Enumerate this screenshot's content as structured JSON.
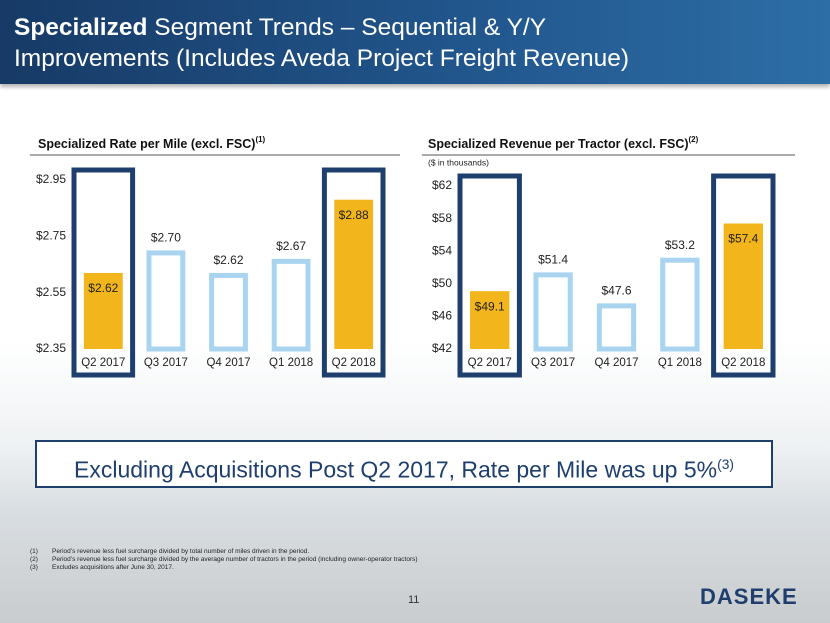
{
  "title_bold": "Specialized",
  "title_rest": "Segment Trends – Sequential & Y/Y Improvements (Includes Aveda Project Freight Revenue)",
  "chart_data": [
    {
      "type": "bar",
      "title": "Specialized Rate per Mile (excl. FSC)",
      "title_note": "(1)",
      "categories": [
        "Q2 2017",
        "Q3 2017",
        "Q4 2017",
        "Q1 2018",
        "Q2 2018"
      ],
      "values": [
        2.62,
        2.7,
        2.62,
        2.67,
        2.88
      ],
      "value_labels": [
        "$2.62",
        "$2.70",
        "$2.62",
        "$2.67",
        "$2.88"
      ],
      "colors": [
        "#f2b51c",
        "#a8d4ef",
        "#a8d4ef",
        "#a8d4ef",
        "#f2b51c"
      ],
      "filled": [
        true,
        false,
        false,
        false,
        true
      ],
      "highlight": [
        0,
        4
      ],
      "ylim": [
        2.35,
        2.95
      ],
      "yticks": [
        {
          "value": 2.35,
          "label": "$2.35"
        },
        {
          "value": 2.55,
          "label": "$2.55"
        },
        {
          "value": 2.75,
          "label": "$2.75"
        },
        {
          "value": 2.95,
          "label": "$2.95"
        }
      ],
      "grid": false
    },
    {
      "type": "bar",
      "title": "Specialized Revenue per Tractor (excl. FSC)",
      "title_note": "(2)",
      "subtitle": "($ in thousands)",
      "categories": [
        "Q2 2017",
        "Q3 2017",
        "Q4 2017",
        "Q1 2018",
        "Q2 2018"
      ],
      "values": [
        49.1,
        51.4,
        47.6,
        53.2,
        57.4
      ],
      "value_labels": [
        "$49.1",
        "$51.4",
        "$47.6",
        "$53.2",
        "$57.4"
      ],
      "colors": [
        "#f2b51c",
        "#a8d4ef",
        "#a8d4ef",
        "#a8d4ef",
        "#f2b51c"
      ],
      "filled": [
        true,
        false,
        false,
        false,
        true
      ],
      "highlight": [
        0,
        4
      ],
      "ylim": [
        42,
        62
      ],
      "yticks": [
        {
          "value": 42,
          "label": "$42"
        },
        {
          "value": 46,
          "label": "$46"
        },
        {
          "value": 50,
          "label": "$50"
        },
        {
          "value": 54,
          "label": "$54"
        },
        {
          "value": 58,
          "label": "$58"
        },
        {
          "value": 62,
          "label": "$62"
        }
      ],
      "grid": false
    }
  ],
  "callout": "Excluding Acquisitions Post Q2 2017, Rate per Mile was up 5%",
  "callout_note": "(3)",
  "footnotes": [
    {
      "marker": "(1)",
      "text": "Period’s revenue less fuel surcharge divided by total number of miles driven in the period."
    },
    {
      "marker": "(2)",
      "text": "Period’s revenue less fuel surcharge divided by the average number of tractors in the period (including owner-operator tractors)"
    },
    {
      "marker": "(3)",
      "text": "Excludes acquisitions after June 30, 2017."
    }
  ],
  "page_number": "11",
  "logo": "DASEKE"
}
